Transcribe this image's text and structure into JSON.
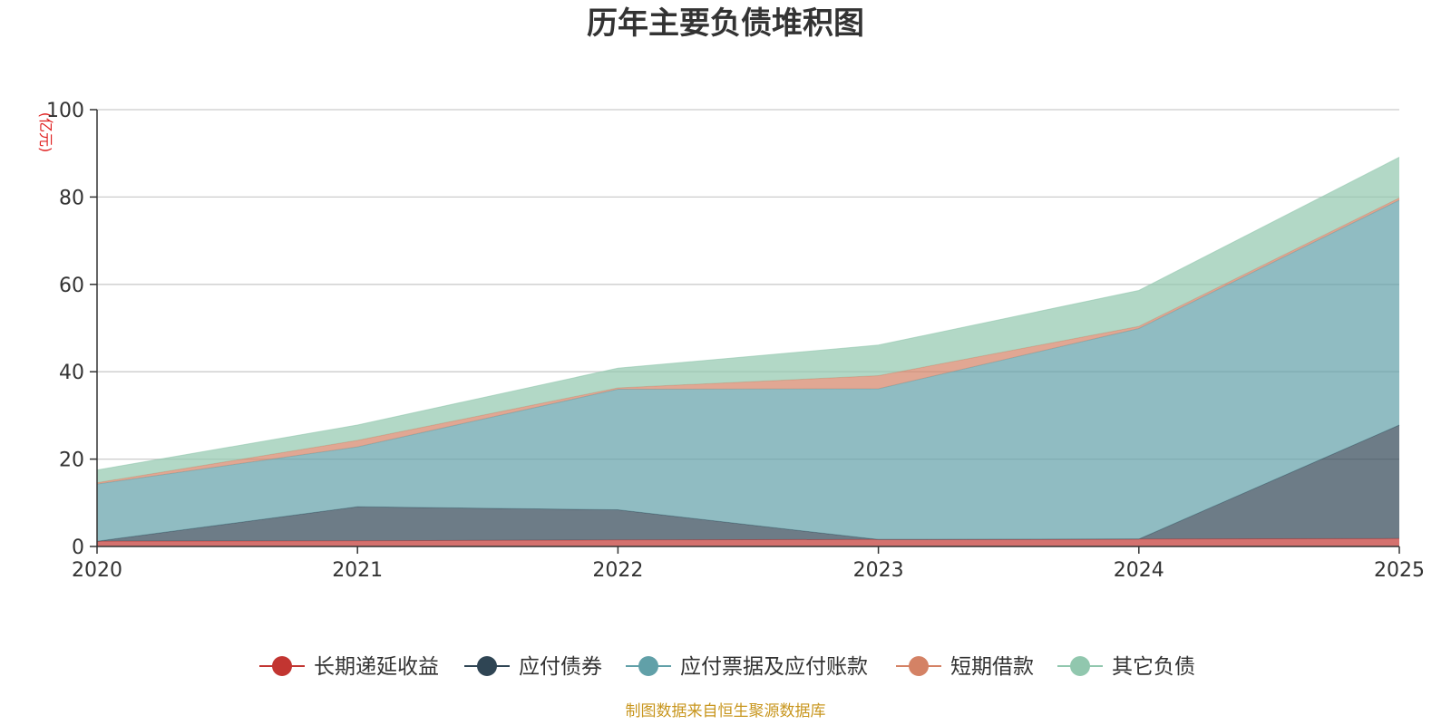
{
  "chart_data": {
    "type": "area",
    "stacked": true,
    "title": "历年主要负债堆积图",
    "ylabel": "(亿元)",
    "xlabel": "",
    "ylim": [
      0,
      100
    ],
    "yticks": [
      "0",
      "20",
      "40",
      "60",
      "80",
      "100"
    ],
    "categories": [
      "2020",
      "2021",
      "2022",
      "2023",
      "2024",
      "2025"
    ],
    "series": [
      {
        "name": "长期递延收益",
        "color": "#c23531",
        "values": [
          1.2,
          1.3,
          1.5,
          1.6,
          1.7,
          1.8
        ]
      },
      {
        "name": "应付债券",
        "color": "#2f4554",
        "values": [
          0.0,
          7.8,
          6.9,
          0.0,
          0.0,
          26.0
        ]
      },
      {
        "name": "应付票据及应付账款",
        "color": "#61a0a8",
        "values": [
          13.1,
          13.7,
          27.6,
          34.5,
          48.2,
          51.5
        ]
      },
      {
        "name": "短期借款",
        "color": "#d48265",
        "values": [
          0.3,
          1.5,
          0.3,
          3.0,
          0.5,
          0.5
        ]
      },
      {
        "name": "其它负债",
        "color": "#91c7ae",
        "values": [
          2.9,
          3.5,
          4.5,
          7.0,
          8.2,
          9.3
        ]
      }
    ],
    "legend_position": "bottom",
    "grid": true
  },
  "source_note": "制图数据来自恒生聚源数据库"
}
